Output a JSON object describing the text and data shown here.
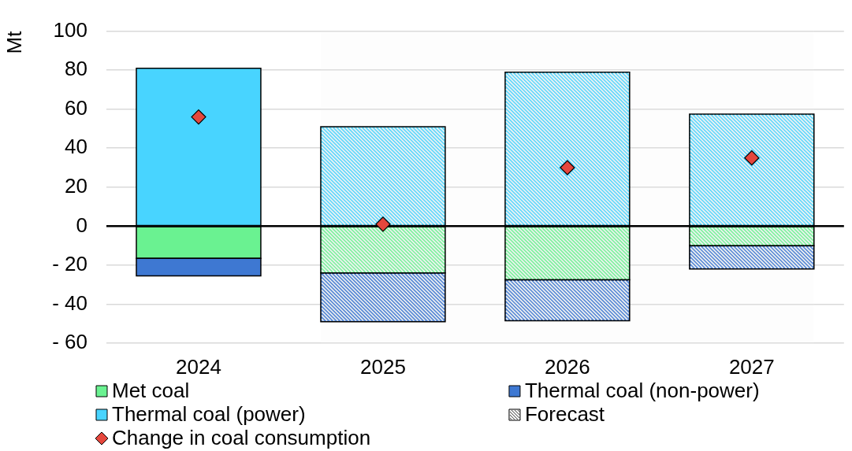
{
  "chart_data": {
    "type": "bar",
    "ylabel": "Mt",
    "categories": [
      "2024",
      "2025",
      "2026",
      "2027"
    ],
    "stacked": true,
    "series": [
      {
        "name": "Met coal",
        "color": "#6af291",
        "values": [
          -16.5,
          -24,
          -27.5,
          -10
        ]
      },
      {
        "name": "Thermal coal (non-power)",
        "color": "#3e78d2",
        "values": [
          -9,
          -25,
          -21,
          -12
        ]
      },
      {
        "name": "Thermal coal (power)",
        "color": "#48d4ff",
        "values": [
          81,
          51,
          79,
          57.5
        ]
      },
      {
        "name": "Change in coal consumption",
        "type": "scatter",
        "color": "#e5473d",
        "values": [
          56,
          1,
          30,
          35
        ]
      }
    ],
    "bands": [
      {
        "axis": "x",
        "from": "2025",
        "to": "2027",
        "label": "Forecast",
        "color": "#f2f2f2"
      }
    ],
    "ylim": [
      -60,
      100
    ],
    "yticks": [
      {
        "value": -60,
        "label": "- 60"
      },
      {
        "value": -40,
        "label": "- 40"
      },
      {
        "value": -20,
        "label": "- 20"
      },
      0,
      20,
      40,
      60,
      80,
      100
    ],
    "marker": "diamond",
    "grid": "y",
    "legend": "bottom"
  }
}
